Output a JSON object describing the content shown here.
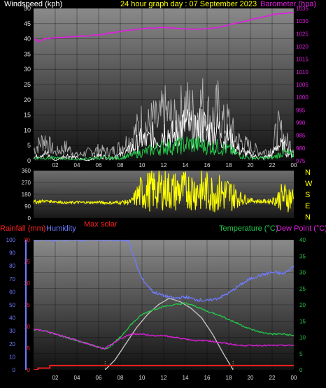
{
  "colors": {
    "wind": "#ffffff",
    "gust": "#c8c8c8",
    "avg_wind": "#22c84a",
    "barometer": "#e01ee0",
    "direction": "#ffff00",
    "rainfall": "#ff2020",
    "humidity": "#6f7bff",
    "solar": "#c0c0c0",
    "temperature": "#22c84a",
    "dewpoint": "#e01ee0",
    "title": "#ffff00",
    "axis_text": "#dddddd"
  },
  "chart_data": [
    {
      "id": "wind-baro",
      "type": "line",
      "title": "24 hour graph day : 07 September 2023",
      "left_axis_label": "Windspeed (kph)",
      "right_axis_label": "Barometer (hpa)",
      "x_ticks": [
        "02",
        "04",
        "06",
        "08",
        "10",
        "12",
        "14",
        "16",
        "18",
        "20",
        "22",
        "00"
      ],
      "left_ylim": [
        0,
        50
      ],
      "left_ticks": [
        0,
        5,
        10,
        15,
        20,
        25,
        30,
        35,
        40,
        45,
        50
      ],
      "right_ylim": [
        975,
        1035
      ],
      "right_ticks": [
        975,
        980,
        985,
        990,
        995,
        1000,
        1005,
        1010,
        1015,
        1020,
        1025,
        1030,
        1035
      ],
      "grid": true,
      "series": [
        {
          "key": "gust",
          "axis": "left",
          "x": [
            0,
            1,
            2,
            3,
            4,
            5,
            6,
            7,
            8,
            9,
            9.5,
            10,
            10.5,
            11,
            11.5,
            12,
            12.5,
            13,
            13.5,
            14,
            14.5,
            15,
            15.5,
            16,
            16.5,
            17,
            17.5,
            18,
            18.5,
            19,
            20,
            21,
            22,
            22.5,
            23,
            23.5,
            24
          ],
          "y": [
            4,
            8,
            3,
            5,
            2,
            3,
            4,
            3,
            5,
            8,
            11,
            14,
            12,
            15,
            13,
            18,
            16,
            14,
            17,
            20,
            18,
            16,
            21,
            17,
            15,
            19,
            13,
            14,
            9,
            7,
            5,
            3,
            4,
            12,
            9,
            6,
            5
          ]
        },
        {
          "key": "wind",
          "axis": "left",
          "x": [
            0,
            1,
            2,
            3,
            4,
            5,
            6,
            7,
            8,
            9,
            9.5,
            10,
            10.5,
            11,
            11.5,
            12,
            12.5,
            13,
            13.5,
            14,
            14.5,
            15,
            15.5,
            16,
            16.5,
            17,
            17.5,
            18,
            18.5,
            19,
            20,
            21,
            22,
            22.5,
            23,
            23.5,
            24
          ],
          "y": [
            1,
            3,
            0,
            2,
            1,
            0,
            2,
            1,
            2,
            4,
            6,
            8,
            7,
            9,
            8,
            11,
            10,
            9,
            12,
            13,
            12,
            10,
            14,
            11,
            10,
            12,
            8,
            9,
            5,
            4,
            2,
            1,
            2,
            6,
            5,
            3,
            2
          ]
        },
        {
          "key": "avg_wind",
          "axis": "left",
          "x": [
            0,
            2,
            4,
            6,
            8,
            9,
            10,
            11,
            12,
            13,
            14,
            15,
            16,
            17,
            18,
            19,
            20,
            22,
            23,
            24
          ],
          "y": [
            1,
            1,
            0.5,
            1,
            1,
            2,
            3,
            4,
            5,
            5,
            6,
            6,
            5,
            5,
            4,
            2,
            1,
            1,
            3,
            2
          ]
        },
        {
          "key": "barometer",
          "axis": "right",
          "x": [
            0,
            0.5,
            1,
            2,
            4,
            6,
            8,
            9,
            10,
            11,
            12,
            13,
            14,
            15,
            16,
            17,
            18,
            19,
            20,
            21,
            22,
            23,
            24
          ],
          "y": [
            1023,
            1022,
            1023,
            1023.5,
            1024,
            1024.5,
            1026,
            1026.5,
            1027,
            1027.3,
            1027.5,
            1027.2,
            1027,
            1026.8,
            1027,
            1027.5,
            1028.5,
            1029.5,
            1030.5,
            1031.5,
            1032.5,
            1033,
            1033.5
          ]
        }
      ]
    },
    {
      "id": "wind-direction",
      "type": "line",
      "left_ticks": [
        0,
        90,
        180,
        270,
        360
      ],
      "ylim": [
        0,
        360
      ],
      "compass_labels": [
        "N",
        "W",
        "S",
        "E",
        "N"
      ],
      "series": [
        {
          "key": "direction",
          "base": [
            0,
            1,
            2,
            3,
            4,
            5,
            6,
            7,
            8,
            9,
            10,
            11,
            12,
            13,
            14,
            15,
            16,
            17,
            18,
            19,
            20,
            21,
            22,
            23,
            24
          ],
          "values": [
            120,
            130,
            125,
            115,
            120,
            118,
            120,
            115,
            120,
            125,
            200,
            210,
            220,
            200,
            215,
            210,
            200,
            190,
            180,
            150,
            135,
            125,
            130,
            160,
            150
          ],
          "spread": [
            15,
            10,
            10,
            8,
            10,
            8,
            10,
            10,
            15,
            20,
            150,
            160,
            160,
            160,
            150,
            160,
            160,
            150,
            150,
            60,
            20,
            15,
            20,
            120,
            100
          ]
        }
      ]
    },
    {
      "id": "temp-humidity",
      "type": "line",
      "left_axis_label": "Rainfall (mm)",
      "humidity_label": "Humidity",
      "solar_label": "Max solar",
      "right_axis_label_temp": "Temperature (°C)",
      "right_axis_label_dew": "Dew Point (°C)",
      "x_ticks": [
        "02",
        "04",
        "06",
        "08",
        "10",
        "12",
        "14",
        "16",
        "18",
        "20",
        "22",
        "00"
      ],
      "humidity_ticks": [
        0,
        10,
        20,
        30,
        40,
        50,
        60,
        70,
        80,
        90,
        100
      ],
      "rain_ticks": [
        0,
        5,
        10,
        15,
        20,
        25,
        30
      ],
      "rain_ylim": [
        0,
        30
      ],
      "temp_ticks": [
        0,
        5,
        10,
        15,
        20,
        25,
        30,
        35,
        40
      ],
      "temp_ylim": [
        0,
        40
      ],
      "grid": true,
      "series": [
        {
          "key": "humidity",
          "axis": "humidity",
          "x": [
            0,
            4,
            8,
            8.8,
            9.5,
            10,
            11,
            12,
            13,
            14,
            15,
            16,
            17,
            18,
            19,
            20,
            21,
            22,
            23,
            23.5,
            24
          ],
          "y": [
            100,
            100,
            100,
            99,
            80,
            70,
            60,
            57,
            55,
            56,
            54,
            53,
            55,
            59,
            65,
            70,
            73,
            75,
            74,
            76,
            80
          ]
        },
        {
          "key": "temperature",
          "axis": "temp",
          "x": [
            0,
            1,
            2,
            3,
            4,
            5,
            6,
            6.5,
            7,
            8,
            9,
            10,
            11,
            12,
            13,
            14,
            15,
            16,
            17,
            18,
            19,
            20,
            21,
            22,
            23,
            24
          ],
          "y": [
            12.5,
            12,
            11,
            10,
            9,
            8,
            7,
            6.5,
            7,
            10,
            14,
            17,
            18.5,
            19.5,
            20,
            20.5,
            19.5,
            18,
            17,
            15.5,
            14,
            12.5,
            11.5,
            11,
            11,
            10.5
          ]
        },
        {
          "key": "dewpoint",
          "axis": "temp",
          "x": [
            0,
            1,
            2,
            3,
            4,
            5,
            6,
            6.5,
            7,
            8,
            9,
            10,
            11,
            12,
            13,
            14,
            15,
            16,
            17,
            18,
            19,
            20,
            21,
            22,
            23,
            24
          ],
          "y": [
            12.5,
            12,
            11,
            10,
            9,
            8,
            7,
            6.5,
            7.5,
            9.5,
            11,
            11,
            10.5,
            10.5,
            10,
            9.5,
            9,
            9,
            8.5,
            8,
            7.5,
            7.5,
            7.5,
            7.5,
            7.5,
            7.5
          ]
        },
        {
          "key": "solar",
          "axis": "temp",
          "x": [
            6.6,
            7.5,
            8.5,
            9.5,
            10.5,
            11.5,
            12.5,
            13.5,
            14.5,
            15.5,
            16.5,
            17.5,
            18.4
          ],
          "y": [
            0,
            3,
            8,
            13,
            17,
            20,
            22,
            21,
            19,
            16,
            11,
            5,
            0
          ]
        },
        {
          "key": "rainfall",
          "axis": "rain",
          "x": [
            0,
            0.3,
            1,
            1.5,
            24
          ],
          "y": [
            0,
            0,
            0.3,
            1,
            1
          ]
        }
      ]
    }
  ]
}
